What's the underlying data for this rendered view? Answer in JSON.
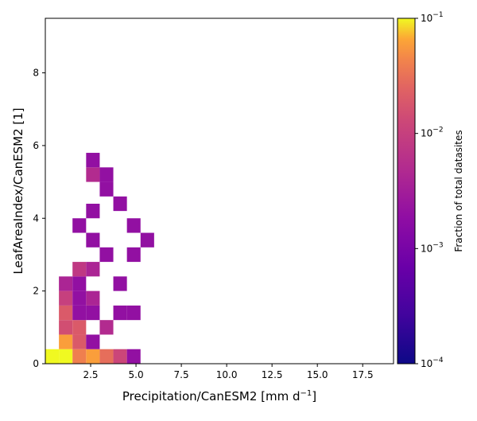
{
  "chart_data": {
    "type": "heatmap",
    "xlabel": "Precipitation/CanESM2 [mm d",
    "xlabel_superscript": "−1",
    "xlabel_suffix": "]",
    "ylabel": "LeafAreaIndex/CanESM2 [1]",
    "colorbar_label": "Fraction of total datasites",
    "colormap": "plasma",
    "color_scale": "log",
    "color_range": [
      0.0001,
      0.1
    ],
    "xlim": [
      0,
      19.2
    ],
    "ylim": [
      0,
      9.5
    ],
    "grid": false,
    "x_ticks": [
      {
        "value": 2.5,
        "label": "2.5"
      },
      {
        "value": 5.0,
        "label": "5.0"
      },
      {
        "value": 7.5,
        "label": "7.5"
      },
      {
        "value": 10.0,
        "label": "10.0"
      },
      {
        "value": 12.5,
        "label": "12.5"
      },
      {
        "value": 15.0,
        "label": "15.0"
      },
      {
        "value": 17.5,
        "label": "17.5"
      }
    ],
    "y_ticks": [
      {
        "value": 0,
        "label": "0"
      },
      {
        "value": 2,
        "label": "2"
      },
      {
        "value": 4,
        "label": "4"
      },
      {
        "value": 6,
        "label": "6"
      },
      {
        "value": 8,
        "label": "8"
      }
    ],
    "colorbar_ticks": [
      {
        "value": 0.1,
        "base": "10",
        "exp": "−1"
      },
      {
        "value": 0.01,
        "base": "10",
        "exp": "−2"
      },
      {
        "value": 0.001,
        "base": "10",
        "exp": "−3"
      },
      {
        "value": 0.0001,
        "base": "10",
        "exp": "−4"
      }
    ],
    "bin_width_x": 0.75,
    "bin_height_y": 0.4,
    "cells": [
      {
        "x": 0.0,
        "y": 0.0,
        "value": 0.1
      },
      {
        "x": 0.75,
        "y": 0.0,
        "value": 0.1
      },
      {
        "x": 1.5,
        "y": 0.0,
        "value": 0.04
      },
      {
        "x": 2.25,
        "y": 0.0,
        "value": 0.06
      },
      {
        "x": 3.0,
        "y": 0.0,
        "value": 0.03
      },
      {
        "x": 3.75,
        "y": 0.0,
        "value": 0.012
      },
      {
        "x": 4.5,
        "y": 0.0,
        "value": 0.002
      },
      {
        "x": 0.75,
        "y": 0.4,
        "value": 0.06
      },
      {
        "x": 1.5,
        "y": 0.4,
        "value": 0.02
      },
      {
        "x": 2.25,
        "y": 0.4,
        "value": 0.002
      },
      {
        "x": 0.75,
        "y": 0.8,
        "value": 0.015
      },
      {
        "x": 1.5,
        "y": 0.8,
        "value": 0.02
      },
      {
        "x": 3.0,
        "y": 0.8,
        "value": 0.005
      },
      {
        "x": 0.75,
        "y": 1.2,
        "value": 0.02
      },
      {
        "x": 1.5,
        "y": 1.2,
        "value": 0.002
      },
      {
        "x": 2.25,
        "y": 1.2,
        "value": 0.002
      },
      {
        "x": 3.75,
        "y": 1.2,
        "value": 0.002
      },
      {
        "x": 4.5,
        "y": 1.2,
        "value": 0.002
      },
      {
        "x": 0.75,
        "y": 1.6,
        "value": 0.01
      },
      {
        "x": 1.5,
        "y": 1.6,
        "value": 0.002
      },
      {
        "x": 2.25,
        "y": 1.6,
        "value": 0.004
      },
      {
        "x": 0.75,
        "y": 2.0,
        "value": 0.004
      },
      {
        "x": 1.5,
        "y": 2.0,
        "value": 0.002
      },
      {
        "x": 3.75,
        "y": 2.0,
        "value": 0.002
      },
      {
        "x": 1.5,
        "y": 2.4,
        "value": 0.008
      },
      {
        "x": 2.25,
        "y": 2.4,
        "value": 0.004
      },
      {
        "x": 3.0,
        "y": 2.8,
        "value": 0.002
      },
      {
        "x": 4.5,
        "y": 2.8,
        "value": 0.002
      },
      {
        "x": 2.25,
        "y": 3.2,
        "value": 0.002
      },
      {
        "x": 5.25,
        "y": 3.2,
        "value": 0.002
      },
      {
        "x": 1.5,
        "y": 3.6,
        "value": 0.002
      },
      {
        "x": 4.5,
        "y": 3.6,
        "value": 0.002
      },
      {
        "x": 2.25,
        "y": 4.0,
        "value": 0.002
      },
      {
        "x": 3.75,
        "y": 4.2,
        "value": 0.002
      },
      {
        "x": 3.0,
        "y": 4.6,
        "value": 0.002
      },
      {
        "x": 2.25,
        "y": 5.0,
        "value": 0.005
      },
      {
        "x": 3.0,
        "y": 5.0,
        "value": 0.002
      },
      {
        "x": 2.25,
        "y": 5.4,
        "value": 0.002
      }
    ]
  }
}
